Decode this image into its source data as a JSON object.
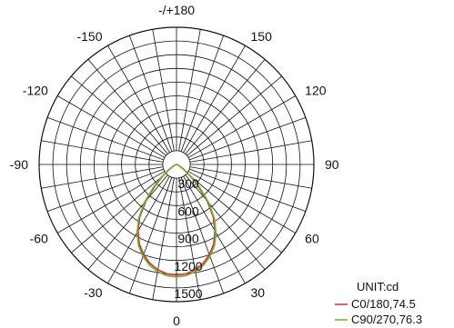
{
  "chart_data": {
    "type": "polar",
    "angle_labels": [
      {
        "angle": 180,
        "text": "-/+180"
      },
      {
        "angle": 150,
        "text": "150"
      },
      {
        "angle": -150,
        "text": "-150"
      },
      {
        "angle": 120,
        "text": "120"
      },
      {
        "angle": -120,
        "text": "-120"
      },
      {
        "angle": 90,
        "text": "90"
      },
      {
        "angle": -90,
        "text": "-90"
      },
      {
        "angle": 60,
        "text": "60"
      },
      {
        "angle": -60,
        "text": "-60"
      },
      {
        "angle": 30,
        "text": "30"
      },
      {
        "angle": -30,
        "text": "-30"
      },
      {
        "angle": 0,
        "text": "0"
      }
    ],
    "radial_ticks": [
      {
        "value": 300,
        "text": "300"
      },
      {
        "value": 600,
        "text": "600"
      },
      {
        "value": 900,
        "text": "900"
      },
      {
        "value": 1200,
        "text": "1200"
      },
      {
        "value": 1500,
        "text": "1500"
      }
    ],
    "radial_max": 1500,
    "unit_label": "UNIT:cd",
    "series": [
      {
        "name": "C0/180,74.5",
        "color": "#d9302a",
        "angles": [
          0,
          5,
          10,
          15,
          20,
          25,
          30,
          35,
          40,
          45,
          50,
          55,
          60,
          70,
          90
        ],
        "values": [
          1210,
          1200,
          1170,
          1120,
          1050,
          960,
          840,
          700,
          520,
          330,
          190,
          100,
          50,
          15,
          0
        ]
      },
      {
        "name": "C90/270,76.3",
        "color": "#6ab030",
        "angles": [
          0,
          5,
          10,
          15,
          20,
          25,
          30,
          35,
          40,
          45,
          50,
          55,
          60,
          70,
          90
        ],
        "values": [
          1230,
          1220,
          1190,
          1140,
          1070,
          980,
          860,
          720,
          550,
          360,
          210,
          110,
          55,
          15,
          0
        ]
      }
    ]
  }
}
